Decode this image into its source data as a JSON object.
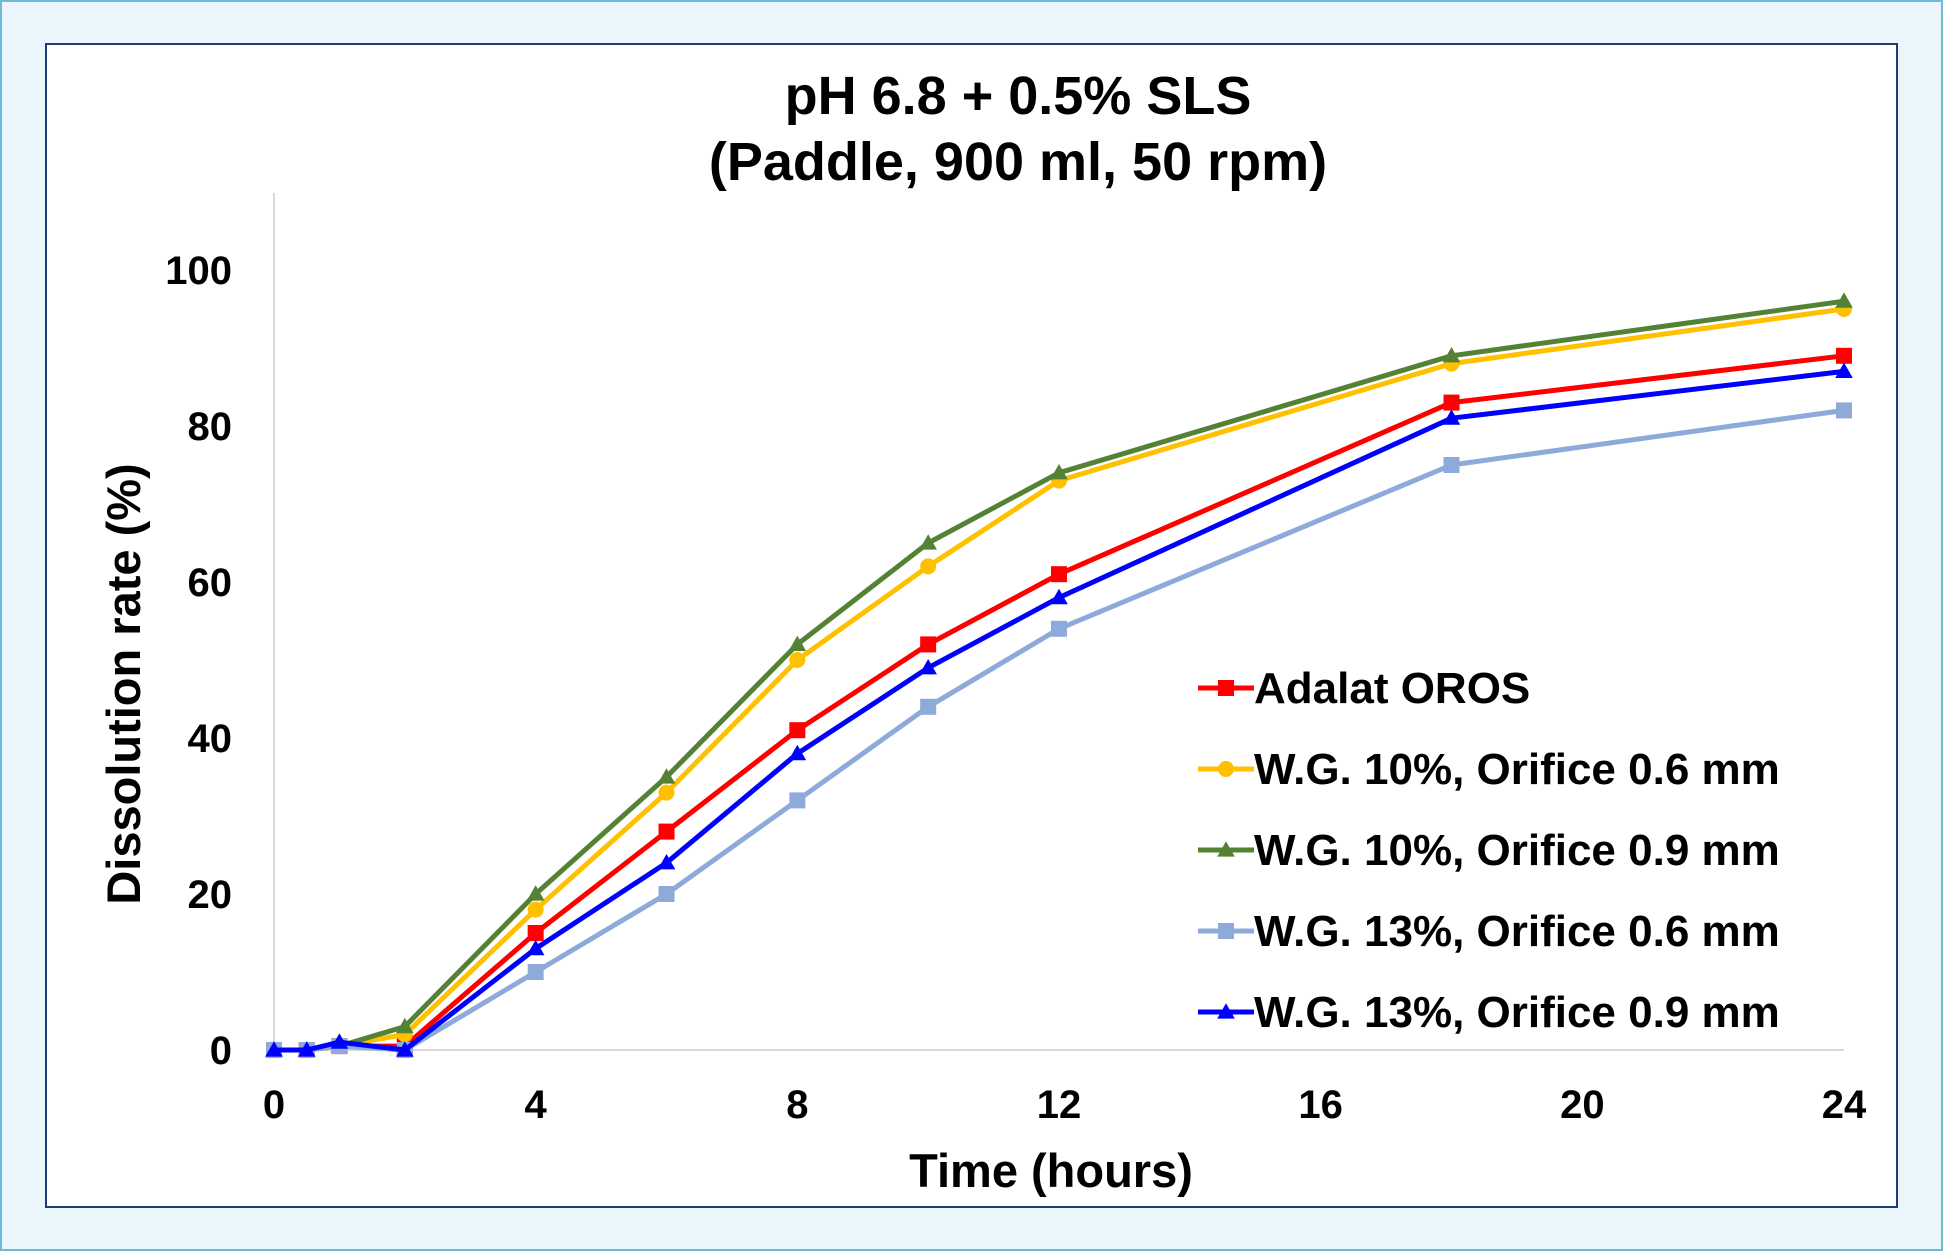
{
  "chart_data": {
    "type": "line",
    "title": "pH 6.8 + 0.5% SLS",
    "subtitle": "(Paddle, 900 ml, 50 rpm)",
    "xlabel": "Time (hours)",
    "ylabel": "Dissolution rate (%)",
    "xlim": [
      0,
      24
    ],
    "ylim": [
      0,
      100
    ],
    "x_ticks": [
      0,
      4,
      8,
      12,
      16,
      20,
      24
    ],
    "y_ticks": [
      0,
      20,
      40,
      60,
      80,
      100
    ],
    "grid": false,
    "legend_position": "right",
    "x": [
      0,
      0.5,
      1,
      2,
      4,
      6,
      8,
      10,
      12,
      18,
      24
    ],
    "series": [
      {
        "name": "Adalat OROS",
        "color": "#ff0000",
        "marker": "square",
        "values": [
          0,
          0,
          0.5,
          0.5,
          15,
          28,
          41,
          52,
          61,
          83,
          89
        ]
      },
      {
        "name": "W.G. 10%, Orifice 0.6 mm",
        "color": "#ffc000",
        "marker": "circle",
        "values": [
          0,
          0,
          0.5,
          2,
          18,
          33,
          50,
          62,
          73,
          88,
          95
        ]
      },
      {
        "name": "W.G. 10%, Orifice 0.9 mm",
        "color": "#548235",
        "marker": "triangle",
        "values": [
          0,
          0,
          0.5,
          3,
          20,
          35,
          52,
          65,
          74,
          89,
          96
        ]
      },
      {
        "name": "W.G. 13%, Orifice 0.6 mm",
        "color": "#8eaadb",
        "marker": "square",
        "values": [
          0,
          0,
          0.5,
          0,
          10,
          20,
          32,
          44,
          54,
          75,
          82
        ]
      },
      {
        "name": "W.G. 13%, Orifice 0.9 mm",
        "color": "#0000ff",
        "marker": "triangle",
        "values": [
          0,
          0,
          1,
          0,
          13,
          24,
          38,
          49,
          58,
          81,
          87
        ]
      }
    ]
  }
}
